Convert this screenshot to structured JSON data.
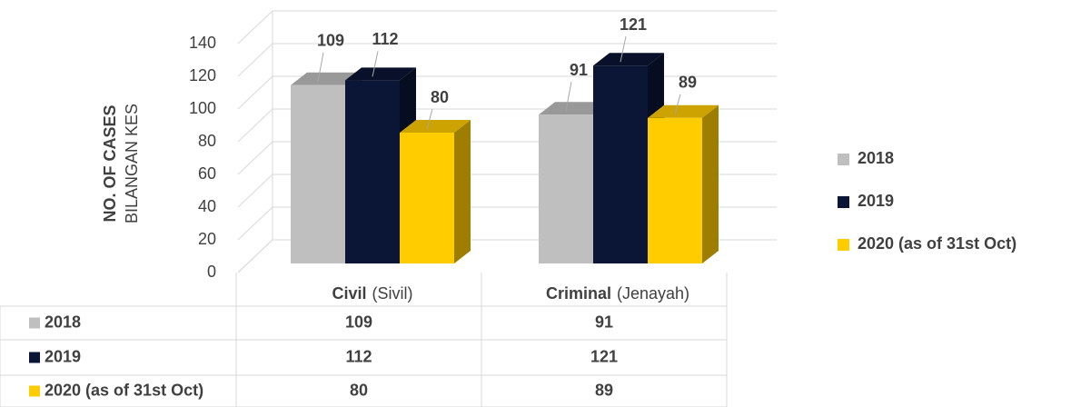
{
  "chart_data": {
    "type": "bar3d",
    "y_label": "NO. OF CASES",
    "y_label_2": "BILANGAN KES",
    "categories": [
      "Civil",
      "Criminal"
    ],
    "category_subtitles": [
      "(Sivil)",
      "(Jenayah)"
    ],
    "series": [
      {
        "name": "2018",
        "color": "#bfbfbf",
        "values": [
          109,
          91
        ]
      },
      {
        "name": "2019",
        "color": "#0b1535",
        "values": [
          112,
          121
        ]
      },
      {
        "name": "2020 (as of 31st Oct)",
        "color": "#ffcc00",
        "values": [
          80,
          89
        ]
      }
    ],
    "ylim": [
      0,
      140
    ],
    "yticks": [
      0,
      20,
      40,
      60,
      80,
      100,
      120,
      140
    ],
    "grid": true,
    "legend": "right",
    "data_table": true
  }
}
